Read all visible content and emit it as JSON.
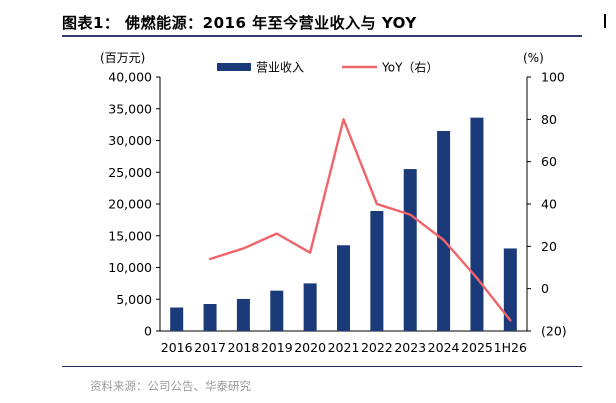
{
  "header": {
    "title": "图表1： 佛燃能源：2016 年至今营业收入与 YOY"
  },
  "footer": {
    "source": "资料来源：公司公告、华泰研究"
  },
  "colors": {
    "bar": "#1a3a7a",
    "line": "#f0646a",
    "axis": "#000000"
  },
  "chart_data": {
    "type": "bar",
    "categories": [
      "2016",
      "2017",
      "2018",
      "2019",
      "2020",
      "2021",
      "2022",
      "2023",
      "2024",
      "2025",
      "1H26"
    ],
    "y_left_unit": "(百万元)",
    "y_right_unit": "(%)",
    "y_left_ticks": [
      "0",
      "5,000",
      "10,000",
      "15,000",
      "20,000",
      "25,000",
      "30,000",
      "35,000",
      "40,000"
    ],
    "y_right_ticks": [
      "(20)",
      "0",
      "20",
      "40",
      "60",
      "80",
      "100"
    ],
    "ylim_left": [
      0,
      40000
    ],
    "ylim_right": [
      -20,
      100
    ],
    "grid": false,
    "legend_position": "top",
    "series": [
      {
        "name": "营业收入",
        "type": "bar",
        "axis": "left",
        "values": [
          3700,
          4250,
          5050,
          6350,
          7500,
          13500,
          18900,
          25500,
          31500,
          33600,
          13000
        ]
      },
      {
        "name": "YoY（右）",
        "type": "line",
        "axis": "right",
        "values": [
          null,
          14,
          19,
          26,
          17,
          80,
          40,
          35,
          23,
          5,
          -15
        ]
      }
    ]
  }
}
